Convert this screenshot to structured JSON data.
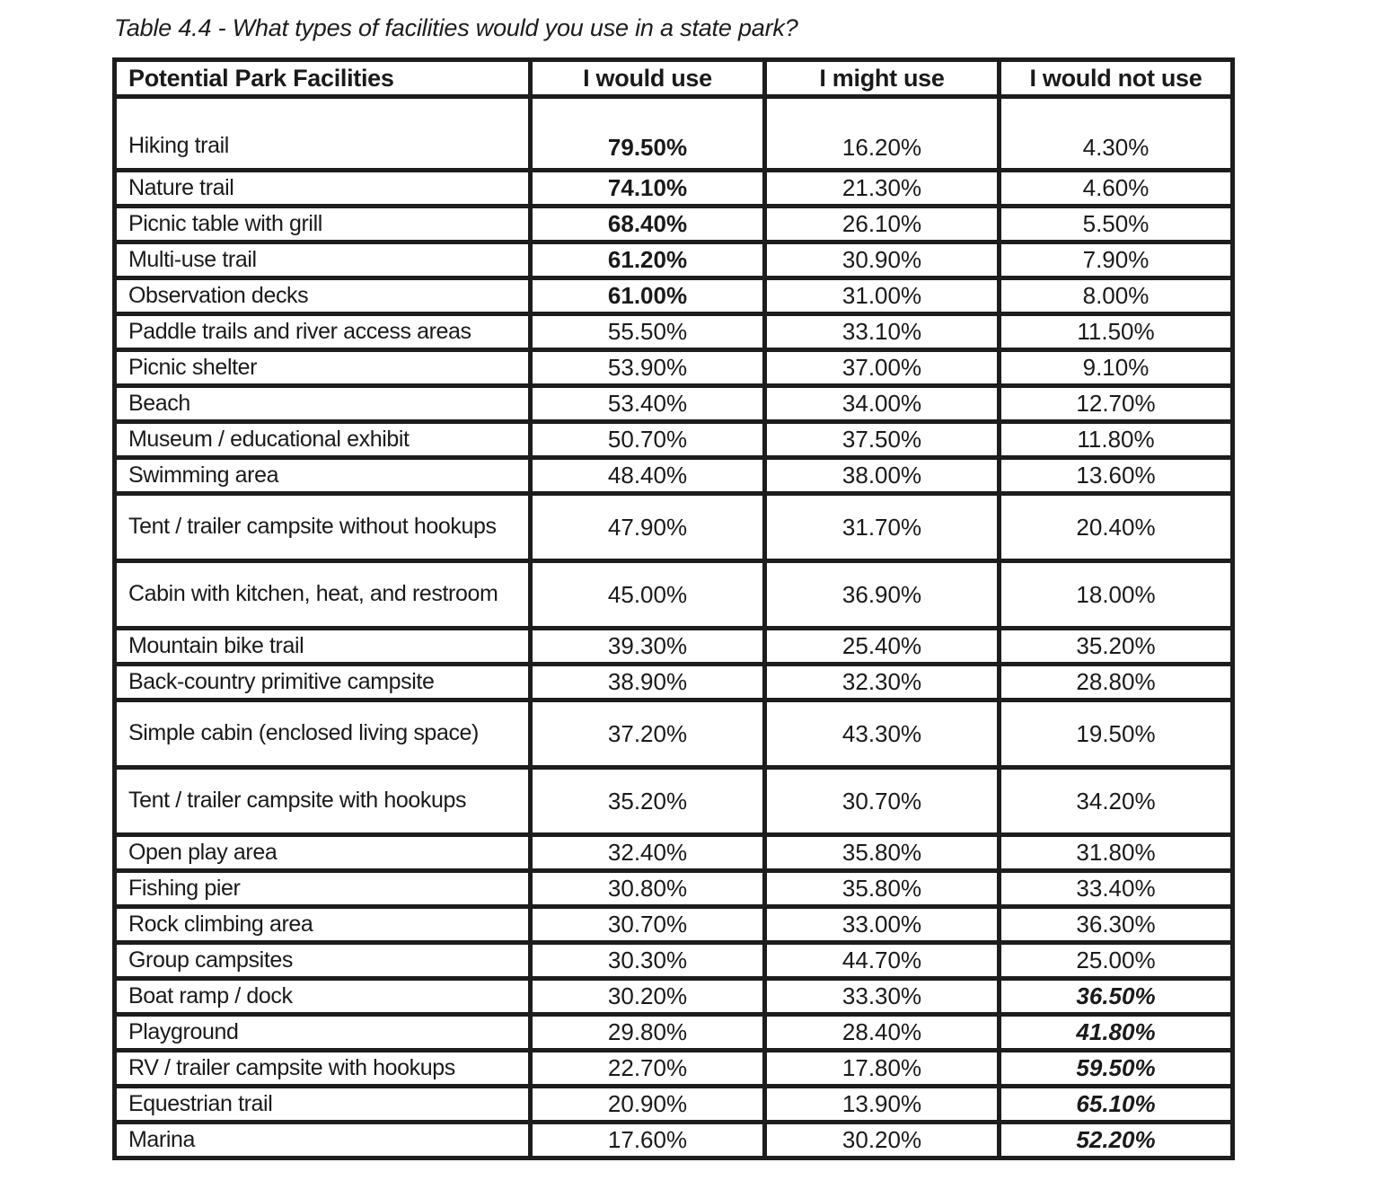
{
  "caption": "Table 4.4 - What types of facilities would you use in a state park?",
  "table": {
    "headers": [
      "Potential Park Facilities",
      "I would use",
      "I might use",
      "I would not use"
    ],
    "rows": [
      {
        "facility": "Hiking trail",
        "would_use": "79.50%",
        "might_use": "16.20%",
        "would_not_use": "4.30%",
        "emphasis": "would",
        "two_line": false
      },
      {
        "facility": "Nature trail",
        "would_use": "74.10%",
        "might_use": "21.30%",
        "would_not_use": "4.60%",
        "emphasis": "would",
        "two_line": false
      },
      {
        "facility": "Picnic table with grill",
        "would_use": "68.40%",
        "might_use": "26.10%",
        "would_not_use": "5.50%",
        "emphasis": "would",
        "two_line": false
      },
      {
        "facility": "Multi-use trail",
        "would_use": "61.20%",
        "might_use": "30.90%",
        "would_not_use": "7.90%",
        "emphasis": "would",
        "two_line": false
      },
      {
        "facility": "Observation decks",
        "would_use": "61.00%",
        "might_use": "31.00%",
        "would_not_use": "8.00%",
        "emphasis": "would",
        "two_line": false
      },
      {
        "facility": "Paddle trails and river access areas",
        "would_use": "55.50%",
        "might_use": "33.10%",
        "would_not_use": "11.50%",
        "emphasis": "none",
        "two_line": false
      },
      {
        "facility": "Picnic shelter",
        "would_use": "53.90%",
        "might_use": "37.00%",
        "would_not_use": "9.10%",
        "emphasis": "none",
        "two_line": false
      },
      {
        "facility": "Beach",
        "would_use": "53.40%",
        "might_use": "34.00%",
        "would_not_use": "12.70%",
        "emphasis": "none",
        "two_line": false
      },
      {
        "facility": "Museum / educational exhibit",
        "would_use": "50.70%",
        "might_use": "37.50%",
        "would_not_use": "11.80%",
        "emphasis": "none",
        "two_line": false
      },
      {
        "facility": "Swimming area",
        "would_use": "48.40%",
        "might_use": "38.00%",
        "would_not_use": "13.60%",
        "emphasis": "none",
        "two_line": false
      },
      {
        "facility": "Tent / trailer campsite without hookups",
        "would_use": "47.90%",
        "might_use": "31.70%",
        "would_not_use": "20.40%",
        "emphasis": "none",
        "two_line": true
      },
      {
        "facility": "Cabin with kitchen, heat, and restroom",
        "would_use": "45.00%",
        "might_use": "36.90%",
        "would_not_use": "18.00%",
        "emphasis": "none",
        "two_line": true
      },
      {
        "facility": "Mountain bike trail",
        "would_use": "39.30%",
        "might_use": "25.40%",
        "would_not_use": "35.20%",
        "emphasis": "none",
        "two_line": false
      },
      {
        "facility": "Back-country primitive campsite",
        "would_use": "38.90%",
        "might_use": "32.30%",
        "would_not_use": "28.80%",
        "emphasis": "none",
        "two_line": false
      },
      {
        "facility": "Simple cabin (enclosed living space)",
        "would_use": "37.20%",
        "might_use": "43.30%",
        "would_not_use": "19.50%",
        "emphasis": "none",
        "two_line": true
      },
      {
        "facility": "Tent / trailer campsite with hookups",
        "would_use": "35.20%",
        "might_use": "30.70%",
        "would_not_use": "34.20%",
        "emphasis": "none",
        "two_line": true
      },
      {
        "facility": "Open play area",
        "would_use": "32.40%",
        "might_use": "35.80%",
        "would_not_use": "31.80%",
        "emphasis": "none",
        "two_line": false
      },
      {
        "facility": "Fishing pier",
        "would_use": "30.80%",
        "might_use": "35.80%",
        "would_not_use": "33.40%",
        "emphasis": "none",
        "two_line": false
      },
      {
        "facility": "Rock climbing area",
        "would_use": "30.70%",
        "might_use": "33.00%",
        "would_not_use": "36.30%",
        "emphasis": "none",
        "two_line": false
      },
      {
        "facility": "Group campsites",
        "would_use": "30.30%",
        "might_use": "44.70%",
        "would_not_use": "25.00%",
        "emphasis": "none",
        "two_line": false
      },
      {
        "facility": "Boat ramp / dock",
        "would_use": "30.20%",
        "might_use": "33.30%",
        "would_not_use": "36.50%",
        "emphasis": "not",
        "two_line": false
      },
      {
        "facility": "Playground",
        "would_use": "29.80%",
        "might_use": "28.40%",
        "would_not_use": "41.80%",
        "emphasis": "not",
        "two_line": false
      },
      {
        "facility": "RV / trailer campsite with hookups",
        "would_use": "22.70%",
        "might_use": "17.80%",
        "would_not_use": "59.50%",
        "emphasis": "not",
        "two_line": false
      },
      {
        "facility": "Equestrian trail",
        "would_use": "20.90%",
        "might_use": "13.90%",
        "would_not_use": "65.10%",
        "emphasis": "not",
        "two_line": false
      },
      {
        "facility": "Marina",
        "would_use": "17.60%",
        "might_use": "30.20%",
        "would_not_use": "52.20%",
        "emphasis": "not",
        "two_line": false
      }
    ]
  },
  "colors": {
    "text": "#1a1a1a",
    "border": "#1d1d1d",
    "background": "#ffffff"
  }
}
